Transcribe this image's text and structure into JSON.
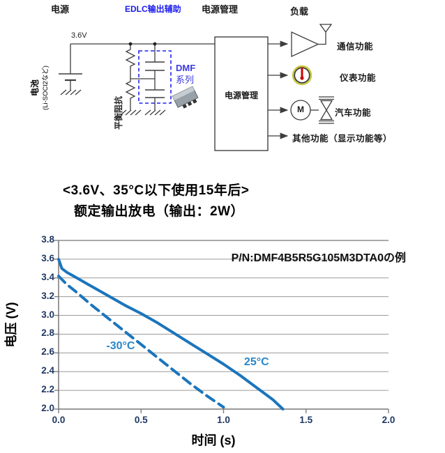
{
  "diagram": {
    "headers": {
      "power": "电源",
      "edlc_assist": "EDLC输出辅助",
      "power_mgmt": "电源管理",
      "load": "负载"
    },
    "voltage_label": "3.6V",
    "battery_line1": "电池",
    "battery_line2": "(Li-SOCl2など)",
    "balance_impedance": "平衡阻抗",
    "dmf_series_line1": "DMF",
    "dmf_series_line2": "系列",
    "power_mgmt_box": "电源管理",
    "motor_letter": "M",
    "loads": {
      "communication": "通信功能",
      "instrument": "仪表功能",
      "automotive": "汽车功能",
      "other": "其他功能（显示功能等）"
    },
    "icons": [
      "battery-icon",
      "ground-icon",
      "resistor-icon",
      "capacitor-icon",
      "chip-icon",
      "amplifier-icon",
      "antenna-icon",
      "gauge-icon",
      "motor-icon",
      "valve-icon",
      "arrow-icon"
    ],
    "accent_blue": "#1a1aee",
    "dashed_box_color": "#2121f0"
  },
  "headline": {
    "line1": "<3.6V、35°C以下使用15年后>",
    "line2": "额定输出放电（输出：2W）"
  },
  "chart_data": {
    "type": "line",
    "annotation": "P/N:DMF4B5R5G105M3DTA0の例",
    "xlabel": "时间 (s)",
    "ylabel": "电压 (V)",
    "xlim": [
      0.0,
      2.0
    ],
    "ylim": [
      2.0,
      3.8
    ],
    "x_ticks": [
      "0.0",
      "0.5",
      "1.0",
      "1.5",
      "2.0"
    ],
    "y_ticks": [
      "3.8",
      "3.6",
      "3.4",
      "3.2",
      "3.0",
      "2.8",
      "2.6",
      "2.4",
      "2.2",
      "2.0"
    ],
    "grid": "horizontal",
    "legend_position": "inline-labels",
    "line_color": "#1b75bc",
    "tick_label_color": "#1f3864",
    "series": [
      {
        "name": "25°C",
        "style": "solid",
        "color": "#1b75bc",
        "points": [
          [
            0.0,
            3.6
          ],
          [
            0.02,
            3.5
          ],
          [
            0.05,
            3.46
          ],
          [
            0.1,
            3.41
          ],
          [
            0.2,
            3.31
          ],
          [
            0.3,
            3.21
          ],
          [
            0.4,
            3.11
          ],
          [
            0.5,
            3.02
          ],
          [
            0.6,
            2.92
          ],
          [
            0.7,
            2.81
          ],
          [
            0.8,
            2.7
          ],
          [
            0.9,
            2.59
          ],
          [
            1.0,
            2.48
          ],
          [
            1.1,
            2.36
          ],
          [
            1.2,
            2.23
          ],
          [
            1.3,
            2.1
          ],
          [
            1.36,
            2.0
          ]
        ]
      },
      {
        "name": "-30°C",
        "style": "dashed",
        "color": "#1b75bc",
        "points": [
          [
            0.0,
            3.42
          ],
          [
            0.05,
            3.33
          ],
          [
            0.1,
            3.26
          ],
          [
            0.2,
            3.11
          ],
          [
            0.3,
            2.97
          ],
          [
            0.4,
            2.83
          ],
          [
            0.5,
            2.69
          ],
          [
            0.6,
            2.55
          ],
          [
            0.7,
            2.41
          ],
          [
            0.8,
            2.27
          ],
          [
            0.9,
            2.14
          ],
          [
            1.0,
            2.02
          ]
        ]
      }
    ],
    "curve_labels": [
      {
        "text": "-30°C",
        "t": 0.376,
        "v": 2.66,
        "color": "#2a86ca"
      },
      {
        "text": "25°C",
        "t": 1.2,
        "v": 2.49,
        "color": "#2a86ca"
      }
    ]
  }
}
